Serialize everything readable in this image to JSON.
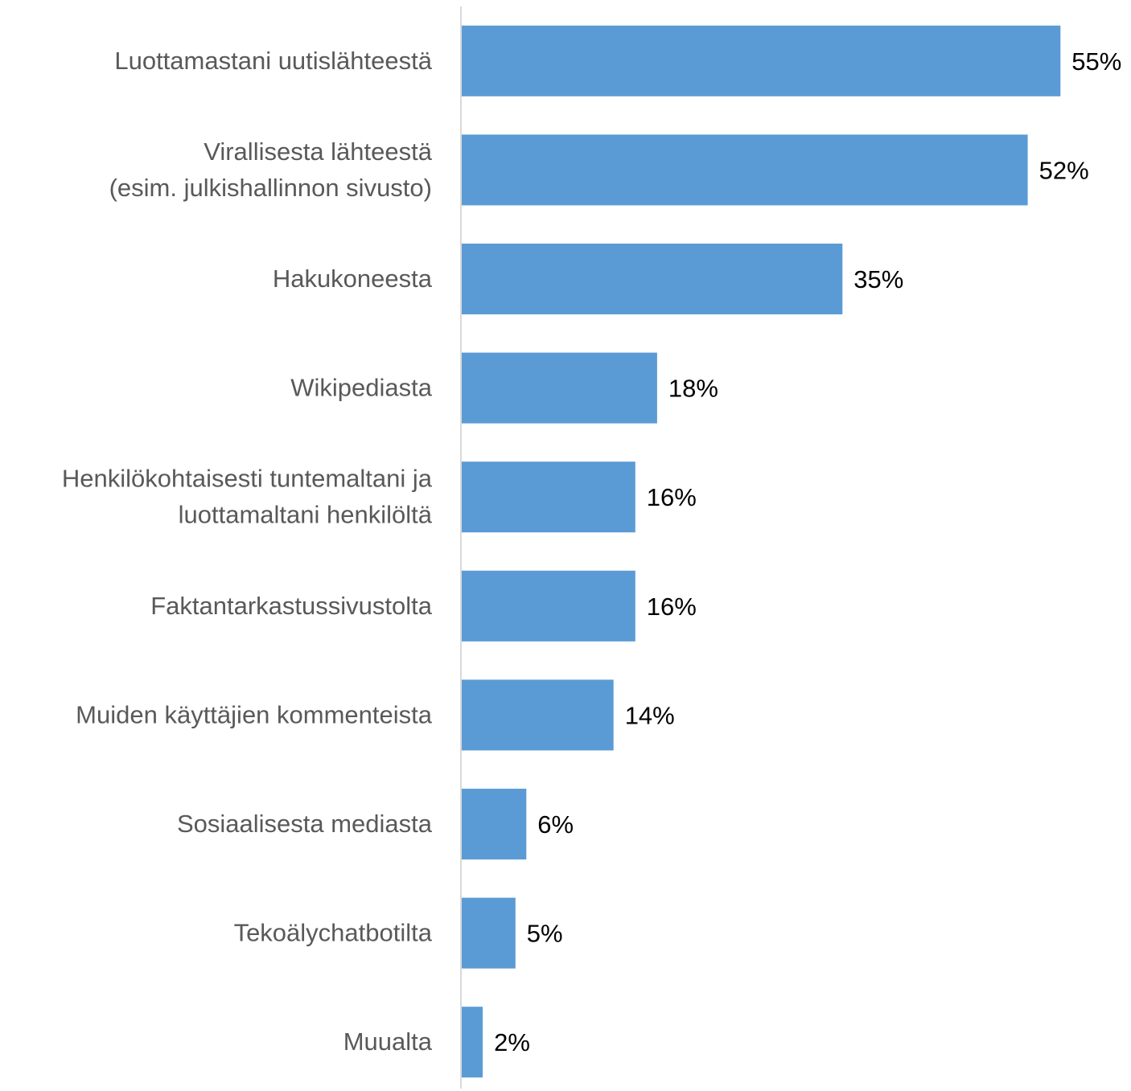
{
  "chart_data": {
    "type": "bar",
    "orientation": "horizontal",
    "categories": [
      [
        "Luottamastani uutislähteestä"
      ],
      [
        "Virallisesta lähteestä",
        "(esim. julkishallinnon sivusto)"
      ],
      [
        "Hakukoneesta"
      ],
      [
        "Wikipediasta"
      ],
      [
        "Henkilökohtaisesti tuntemaltani ja",
        "luottamaltani henkilöltä"
      ],
      [
        "Faktantarkastussivustolta"
      ],
      [
        "Muiden käyttäjien kommenteista"
      ],
      [
        "Sosiaalisesta mediasta"
      ],
      [
        "Tekoälychatbotilta"
      ],
      [
        "Muualta"
      ]
    ],
    "values": [
      55,
      52,
      35,
      18,
      16,
      16,
      14,
      6,
      5,
      2
    ],
    "value_labels": [
      "55%",
      "52%",
      "35%",
      "18%",
      "16%",
      "16%",
      "14%",
      "6%",
      "5%",
      "2%"
    ],
    "value_unit": "%",
    "xlim": [
      0,
      60
    ],
    "grid": false,
    "legend": "none",
    "colors": {
      "bar": "#5B9BD5",
      "axis": "#D9D9D9",
      "category_text": "#595959",
      "value_text": "#000000"
    }
  }
}
